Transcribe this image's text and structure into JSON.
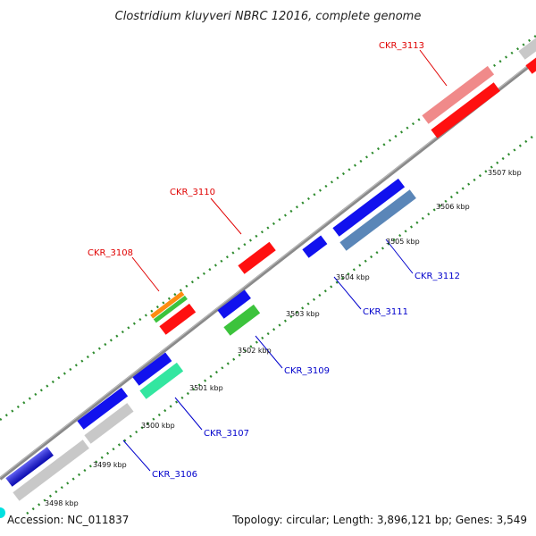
{
  "title": "Clostridium kluyveri NBRC 12016, complete genome",
  "accession_text": "Accession: NC_011837",
  "topology_text": "Topology: circular; Length: 3,896,121 bp; Genes: 3,549",
  "ticks": [
    "3498 kbp",
    "3499 kbp",
    "3500 kbp",
    "3501 kbp",
    "3502 kbp",
    "3503 kbp",
    "3504 kbp",
    "3505 kbp",
    "3506 kbp",
    "3507 kbp"
  ],
  "gene_labels": {
    "ckr_3106": "CKR_3106",
    "ckr_3107": "CKR_3107",
    "ckr_3108": "CKR_3108",
    "ckr_3109": "CKR_3109",
    "ckr_3110": "CKR_3110",
    "ckr_3111": "CKR_3111",
    "ckr_3112": "CKR_3112",
    "ckr_3113": "CKR_3113"
  },
  "colors": {
    "backbone": "#8a8a8a",
    "dots": "#2e8b2e",
    "label_red": "#e00000",
    "label_blue": "#0000cc",
    "blue": "#1111ee",
    "grey": "#c8c8c8",
    "red": "#ff1010",
    "pink": "#f08a8a",
    "steelblue": "#5a86b8",
    "green": "#3cc33c",
    "mint": "#33e6a0",
    "orange": "#ff8c10",
    "accession_dot": "#00e0e0"
  }
}
